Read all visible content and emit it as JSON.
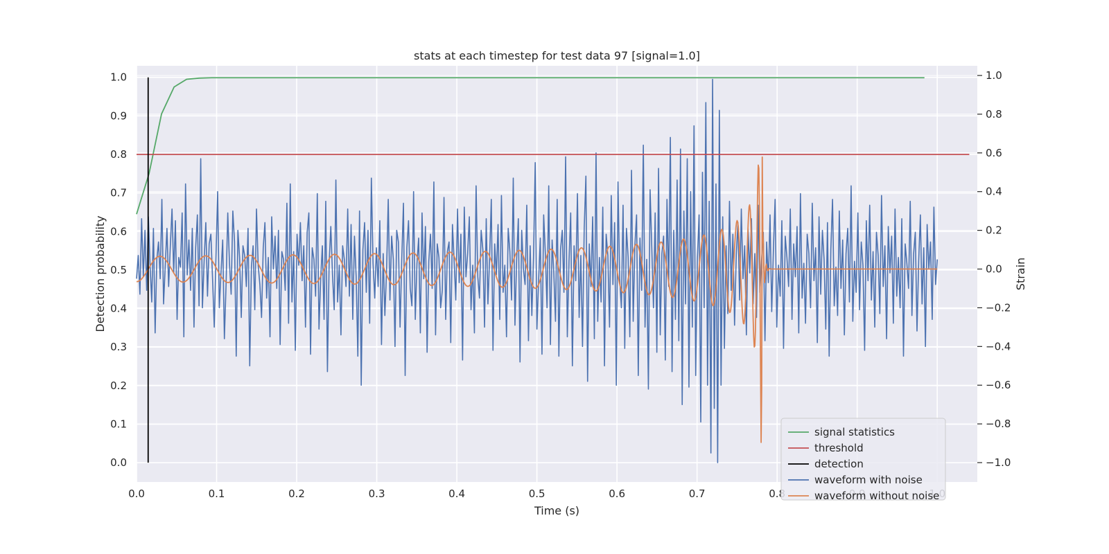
{
  "chart_data": {
    "type": "line",
    "title": "stats at each timestep for test data 97 [signal=1.0]",
    "xlabel": "Time (s)",
    "ylabel": "Detection probability",
    "y2label": "Strain",
    "xlim": [
      0.0,
      1.05
    ],
    "ylim": [
      -0.05,
      1.03
    ],
    "y2lim": [
      -1.1,
      1.05
    ],
    "grid": true,
    "background": "#eaeaf2",
    "x_ticks": [
      "0.0",
      "0.1",
      "0.2",
      "0.3",
      "0.4",
      "0.5",
      "0.6",
      "0.7",
      "0.8",
      "0.9",
      "1.0"
    ],
    "y_ticks": [
      "0.0",
      "0.1",
      "0.2",
      "0.3",
      "0.4",
      "0.5",
      "0.6",
      "0.7",
      "0.8",
      "0.9",
      "1.0"
    ],
    "y2_ticks": [
      "−1.0",
      "−0.8",
      "−0.6",
      "−0.4",
      "−0.2",
      "0.0",
      "0.2",
      "0.4",
      "0.6",
      "0.8",
      "1.0"
    ],
    "legend_placement": "lower-right",
    "series": [
      {
        "name": "signal statistics",
        "axis": "left",
        "color": "#55a868",
        "x": [
          0.0,
          0.0156,
          0.0312,
          0.0469,
          0.0625,
          0.0781,
          0.0938,
          0.2,
          0.4,
          0.6,
          0.8,
          0.984
        ],
        "y": [
          0.645,
          0.75,
          0.905,
          0.975,
          0.995,
          0.998,
          0.999,
          0.999,
          0.999,
          0.999,
          0.999,
          0.999
        ]
      },
      {
        "name": "threshold",
        "axis": "left",
        "color": "#c44e52",
        "x": [
          0.0,
          1.04
        ],
        "y": [
          0.8,
          0.8
        ]
      },
      {
        "name": "detection",
        "axis": "left",
        "color": "#000000",
        "x": [
          0.0145,
          0.0145
        ],
        "y": [
          0.0,
          1.0
        ]
      },
      {
        "name": "waveform with noise",
        "axis": "right",
        "color": "#4c72b0",
        "x_start": 0.0,
        "x_end": 1.0,
        "y": [
          -0.05,
          0.07,
          -0.13,
          0.26,
          -0.04,
          0.2,
          -0.11,
          0.27,
          0.02,
          -0.17,
          0.21,
          -0.33,
          0.05,
          0.14,
          -0.05,
          0.36,
          -0.18,
          0.02,
          0.21,
          -0.09,
          0.12,
          0.31,
          -0.02,
          0.25,
          -0.26,
          0.06,
          0.01,
          0.29,
          -0.35,
          0.44,
          -0.03,
          0.15,
          -0.11,
          0.21,
          -0.3,
          0.11,
          0.28,
          -0.19,
          0.57,
          -0.2,
          0.04,
          0.24,
          -0.14,
          0.13,
          0.18,
          -0.05,
          -0.3,
          0.05,
          0.4,
          -0.2,
          -0.02,
          0.15,
          -0.36,
          -0.08,
          0.29,
          0.03,
          -0.13,
          0.3,
          0.14,
          -0.45,
          0.2,
          0.06,
          -0.25,
          0.12,
          0.07,
          -0.09,
          0.21,
          -0.5,
          0.01,
          0.12,
          -0.21,
          0.31,
          0.02,
          -0.08,
          -0.25,
          0.11,
          0.24,
          -0.15,
          0.06,
          -0.35,
          0.27,
          0.0,
          0.17,
          -0.1,
          0.2,
          -0.39,
          0.09,
          0.05,
          -0.11,
          0.34,
          -0.28,
          0.44,
          -0.17,
          0.09,
          -0.42,
          0.18,
          0.02,
          0.24,
          -0.06,
          0.12,
          -0.3,
          0.19,
          0.29,
          -0.44,
          0.11,
          0.05,
          -0.14,
          0.39,
          -0.31,
          -0.05,
          0.12,
          -0.26,
          0.35,
          -0.53,
          0.03,
          0.22,
          -0.03,
          -0.21,
          0.46,
          -0.17,
          0.02,
          -0.34,
          0.12,
          0.05,
          -0.09,
          0.31,
          -0.14,
          0.23,
          -0.26,
          0.17,
          -0.04,
          -0.45,
          0.3,
          -0.6,
          0.1,
          0.24,
          -0.12,
          0.2,
          -0.28,
          0.47,
          0.03,
          -0.15,
          0.11,
          -0.09,
          0.25,
          -0.39,
          0.08,
          -0.24,
          -0.01,
          0.36,
          -0.16,
          0.17,
          0.05,
          -0.4,
          0.2,
          0.14,
          -0.3,
          0.05,
          0.34,
          -0.55,
          0.11,
          0.25,
          -0.1,
          -0.19,
          0.4,
          -0.26,
          0.03,
          0.16,
          -0.33,
          0.29,
          -0.05,
          0.22,
          -0.43,
          0.04,
          0.18,
          -0.1,
          0.45,
          -0.34,
          0.13,
          0.06,
          -0.2,
          -0.11,
          0.37,
          -0.26,
          0.09,
          0.14,
          -0.38,
          0.23,
          0.04,
          -0.16,
          0.31,
          -0.07,
          0.18,
          -0.47,
          0.32,
          -0.04,
          0.08,
          0.27,
          -0.21,
          0.02,
          -0.33,
          0.43,
          -0.04,
          -0.15,
          0.2,
          0.1,
          -0.3,
          0.26,
          -0.18,
          0.06,
          0.36,
          -0.42,
          0.13,
          -0.03,
          0.23,
          -0.26,
          0.38,
          -0.12,
          0.02,
          -0.35,
          0.21,
          0.09,
          -0.16,
          0.47,
          -0.29,
          0.05,
          0.26,
          -0.48,
          0.2,
          0.0,
          -0.08,
          0.33,
          -0.37,
          0.12,
          -0.24,
          0.06,
          0.55,
          -0.31,
          -0.06,
          0.16,
          -0.44,
          0.28,
          0.08,
          -0.2,
          0.43,
          -0.39,
          0.15,
          -0.02,
          -0.27,
          0.36,
          -0.45,
          0.1,
          0.2,
          -0.12,
          0.58,
          -0.35,
          0.04,
          0.29,
          -0.5,
          0.12,
          -0.06,
          0.39,
          -0.25,
          0.07,
          -0.4,
          0.21,
          0.48,
          -0.58,
          0.13,
          -0.09,
          0.27,
          -0.36,
          0.6,
          -0.27,
          0.06,
          -0.17,
          0.32,
          -0.5,
          0.18,
          0.07,
          -0.3,
          0.38,
          -0.08,
          0.24,
          -0.6,
          0.45,
          -0.05,
          -0.2,
          0.33,
          -0.41,
          0.21,
          0.06,
          -0.35,
          0.51,
          -0.27,
          0.12,
          0.28,
          -0.55,
          0.16,
          -0.11,
          0.64,
          -0.3,
          0.05,
          -0.62,
          0.41,
          0.11,
          -0.2,
          0.29,
          -0.43,
          0.52,
          -0.34,
          0.08,
          0.17,
          -0.47,
          0.36,
          -0.09,
          0.68,
          -0.53,
          0.2,
          -0.26,
          0.46,
          -0.37,
          0.62,
          -0.7,
          0.3,
          -0.18,
          0.57,
          -0.61,
          0.4,
          -0.3,
          0.74,
          -0.55,
          0.06,
          0.28,
          -0.79,
          0.5,
          -0.2,
          0.86,
          -0.6,
          0.35,
          -0.95,
          0.98,
          -0.72,
          0.44,
          -1.0,
          0.82,
          -0.6,
          0.27,
          -0.41,
          0.12,
          -0.23,
          0.35,
          -0.11,
          0.18,
          -0.29,
          0.07,
          0.24,
          -0.16,
          0.31,
          -0.05,
          0.12,
          -0.34,
          0.21,
          -0.02,
          0.26,
          -0.18,
          0.08,
          -0.25,
          0.33,
          -0.12,
          0.05,
          0.19,
          -0.37,
          0.14,
          -0.07,
          0.28,
          -0.22,
          0.1,
          0.36,
          -0.3,
          0.02,
          -0.14,
          0.25,
          -0.41,
          0.17,
          0.06,
          -0.09,
          0.31,
          -0.26,
          0.13,
          -0.04,
          0.22,
          -0.33,
          0.39,
          -0.15,
          0.03,
          -0.28,
          0.18,
          0.08,
          -0.2,
          0.34,
          -0.06,
          0.11,
          -0.38,
          0.27,
          -0.13,
          0.2,
          0.05,
          -0.31,
          0.24,
          -0.45,
          0.1,
          0.36,
          -0.19,
          0.01,
          -0.24,
          0.3,
          -0.1,
          0.15,
          -0.34,
          0.08,
          0.21,
          -0.17,
          0.43,
          -0.27,
          0.04,
          -0.12,
          0.29,
          -0.21,
          0.14,
          0.02,
          -0.42,
          0.25,
          -0.06,
          0.33,
          -0.16,
          0.09,
          -0.3,
          0.19,
          0.07,
          -0.23,
          0.38,
          -0.09,
          0.12,
          -0.36,
          0.22,
          -0.02,
          0.17,
          -0.28,
          0.31,
          -0.14,
          0.06,
          -0.2,
          0.26,
          -0.45,
          0.13,
          0.03,
          -0.1,
          0.35,
          -0.24,
          0.08,
          0.19,
          -0.32,
          0.04,
          0.28,
          -0.18,
          0.11,
          -0.4,
          0.23,
          0.0,
          0.14,
          -0.26,
          0.32,
          -0.08,
          0.05
        ]
      },
      {
        "name": "waveform without noise",
        "axis": "right",
        "color": "#dd8452",
        "x_start": 0.0,
        "x_end": 1.0
      }
    ]
  }
}
